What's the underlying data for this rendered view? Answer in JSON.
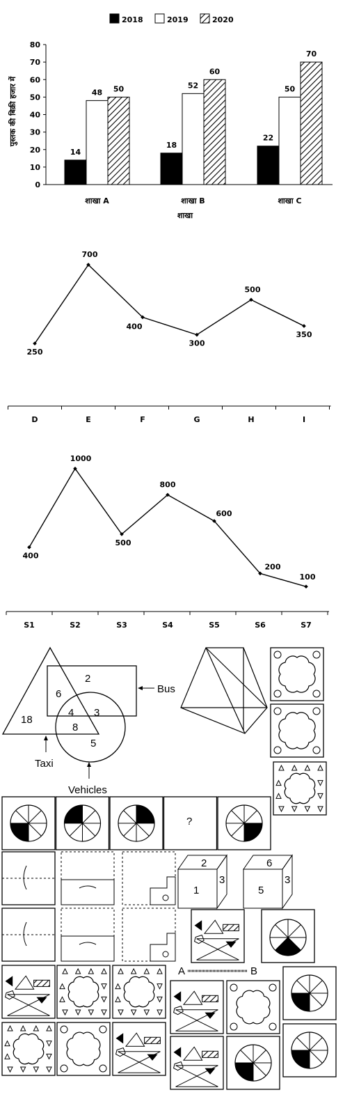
{
  "chart_data": [
    {
      "type": "bar",
      "legend": [
        "2018",
        "2019",
        "2020"
      ],
      "categories": [
        "शाखा A",
        "शाखा B",
        "शाखा C"
      ],
      "series": [
        {
          "name": "2018",
          "values": [
            14,
            18,
            22
          ]
        },
        {
          "name": "2019",
          "values": [
            48,
            52,
            50
          ]
        },
        {
          "name": "2020",
          "values": [
            50,
            60,
            70
          ]
        }
      ],
      "xlabel": "शाखा",
      "ylabel": "पुस्तक की बिक्री हजार में",
      "ylim": [
        0,
        80
      ],
      "yticks": [
        "0",
        "10",
        "20",
        "30",
        "40",
        "50",
        "60",
        "70",
        "80"
      ],
      "legend_position": "top"
    },
    {
      "type": "line",
      "categories": [
        "D",
        "E",
        "F",
        "G",
        "H",
        "I"
      ],
      "values": [
        250,
        700,
        400,
        300,
        500,
        350
      ]
    },
    {
      "type": "line",
      "categories": [
        "S1",
        "S2",
        "S3",
        "S4",
        "S5",
        "S6",
        "S7"
      ],
      "values": [
        400,
        1000,
        500,
        800,
        600,
        200,
        100
      ]
    }
  ],
  "venn": {
    "regions": [
      "6",
      "2",
      "4",
      "3",
      "18",
      "8",
      "5"
    ],
    "labels": {
      "bus": "Bus",
      "taxi": "Taxi",
      "vehicles": "Vehicles"
    }
  },
  "series_puzzle": {
    "missing": "?"
  },
  "dice": [
    {
      "top": "2",
      "front": "1",
      "side": "3"
    },
    {
      "top": "6",
      "front": "5",
      "side": "3"
    }
  ],
  "mirror_labels": {
    "a": "A",
    "b": "B"
  }
}
